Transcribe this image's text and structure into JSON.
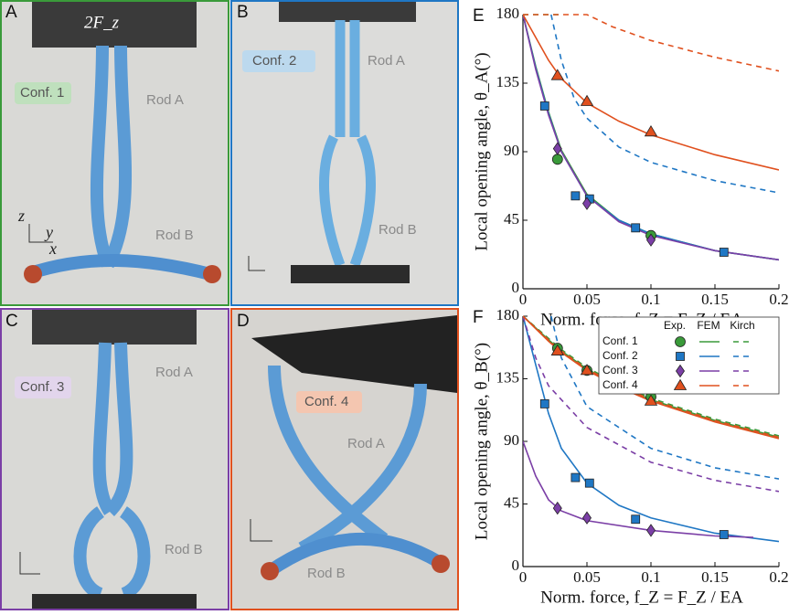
{
  "photos": [
    {
      "letter": "A",
      "force": "2F_z",
      "conf": "Conf. 1",
      "rod_a": "Rod A",
      "rod_b": "Rod B",
      "axes": [
        "z",
        "y",
        "x"
      ]
    },
    {
      "letter": "B",
      "conf": "Conf. 2",
      "rod_a": "Rod A",
      "rod_b": "Rod B"
    },
    {
      "letter": "C",
      "conf": "Conf. 3",
      "rod_a": "Rod A",
      "rod_b": "Rod B"
    },
    {
      "letter": "D",
      "conf": "Conf. 4",
      "rod_a": "Rod A",
      "rod_b": "Rod B"
    }
  ],
  "chart_data": [
    {
      "type": "line",
      "letter": "E",
      "xlabel": "Norm. force, f_Z = F_Z / EA",
      "ylabel": "Local opening angle, θ_A(°)",
      "xlim": [
        0,
        0.2
      ],
      "ylim": [
        0,
        180
      ],
      "xticks": [
        0,
        0.05,
        0.1,
        0.15,
        0.2
      ],
      "yticks": [
        0,
        45,
        90,
        135,
        180
      ],
      "series": [
        {
          "name": "Conf. 1",
          "color": "#3a9a3a",
          "marker": "circle",
          "exp": {
            "x": [
              0.027,
              0.1
            ],
            "values": [
              85,
              35
            ]
          },
          "fem": {
            "x": [
              0,
              0.01,
              0.02,
              0.03,
              0.05,
              0.075,
              0.1,
              0.15,
              0.2
            ],
            "values": [
              180,
              146,
              116,
              91,
              62,
              45,
              36,
              25,
              19
            ]
          },
          "kirch": {
            "x": [
              0,
              0.03
            ],
            "values": [
              180,
              180
            ]
          }
        },
        {
          "name": "Conf. 2",
          "color": "#1f77c4",
          "marker": "square",
          "exp": {
            "x": [
              0.017,
              0.041,
              0.052,
              0.088,
              0.157
            ],
            "values": [
              120,
              61,
              59,
              40,
              24
            ]
          },
          "fem": {
            "x": [
              0,
              0.01,
              0.02,
              0.03,
              0.05,
              0.075,
              0.1,
              0.15,
              0.2
            ],
            "values": [
              180,
              145,
              115,
              90,
              61,
              45,
              36,
              25,
              19
            ]
          },
          "kirch": {
            "x": [
              0.022,
              0.03,
              0.04,
              0.05,
              0.075,
              0.1,
              0.15,
              0.2
            ],
            "values": [
              180,
              150,
              125,
              112,
              93,
              83,
              71,
              63
            ]
          }
        },
        {
          "name": "Conf. 3",
          "color": "#7b3fa6",
          "marker": "diamond",
          "exp": {
            "x": [
              0.027,
              0.05,
              0.1
            ],
            "values": [
              92,
              56,
              32
            ]
          },
          "fem": {
            "x": [
              0,
              0.01,
              0.02,
              0.03,
              0.05,
              0.075,
              0.1,
              0.15,
              0.2
            ],
            "values": [
              180,
              144,
              114,
              90,
              61,
              44,
              35,
              25,
              19
            ]
          }
        },
        {
          "name": "Conf. 4",
          "color": "#e0501e",
          "marker": "triangle",
          "exp": {
            "x": [
              0.027,
              0.05,
              0.1
            ],
            "values": [
              140,
              123,
              103
            ]
          },
          "fem": {
            "x": [
              0,
              0.01,
              0.02,
              0.03,
              0.05,
              0.075,
              0.1,
              0.15,
              0.2
            ],
            "values": [
              180,
              165,
              150,
              138,
              122,
              110,
              101,
              88,
              78
            ]
          },
          "kirch": {
            "x": [
              0,
              0.05,
              0.07,
              0.1,
              0.15,
              0.2
            ],
            "values": [
              180,
              180,
              172,
              163,
              152,
              143
            ]
          }
        }
      ]
    },
    {
      "type": "line",
      "letter": "F",
      "xlabel": "Norm. force, f_Z = F_Z / EA",
      "ylabel": "Local opening angle, θ_B(°)",
      "xlim": [
        0,
        0.2
      ],
      "ylim": [
        0,
        180
      ],
      "xticks": [
        0,
        0.05,
        0.1,
        0.15,
        0.2
      ],
      "yticks": [
        0,
        45,
        90,
        135,
        180
      ],
      "legend": "upper right",
      "legend_columns": [
        "Exp.",
        "FEM",
        "Kirch"
      ],
      "series": [
        {
          "name": "Conf. 1",
          "color": "#3a9a3a",
          "marker": "circle",
          "exp": {
            "x": [
              0.027,
              0.05,
              0.1
            ],
            "values": [
              157,
              141,
              122
            ]
          },
          "fem": {
            "x": [
              0,
              0.02,
              0.03,
              0.05,
              0.075,
              0.1,
              0.15,
              0.2
            ],
            "values": [
              180,
              163,
              155,
              142,
              130,
              120,
              105,
              93
            ]
          },
          "kirch": {
            "x": [
              0,
              0.02,
              0.03,
              0.05,
              0.075,
              0.1,
              0.15,
              0.2
            ],
            "values": [
              180,
              164,
              156,
              143,
              131,
              121,
              106,
              94
            ]
          }
        },
        {
          "name": "Conf. 2",
          "color": "#1f77c4",
          "marker": "square",
          "exp": {
            "x": [
              0.017,
              0.041,
              0.052,
              0.088,
              0.157
            ],
            "values": [
              117,
              64,
              60,
              34,
              23
            ]
          },
          "fem": {
            "x": [
              0,
              0.01,
              0.02,
              0.03,
              0.05,
              0.075,
              0.1,
              0.15,
              0.2
            ],
            "values": [
              180,
              145,
              110,
              85,
              60,
              44,
              35,
              24,
              18
            ]
          },
          "kirch": {
            "x": [
              0.022,
              0.03,
              0.05,
              0.1,
              0.15,
              0.2
            ],
            "values": [
              180,
              150,
              115,
              85,
              71,
              63
            ]
          }
        },
        {
          "name": "Conf. 3",
          "color": "#7b3fa6",
          "marker": "diamond",
          "exp": {
            "x": [
              0.027,
              0.05,
              0.1
            ],
            "values": [
              42,
              35,
              26
            ]
          },
          "fem": {
            "x": [
              0,
              0.01,
              0.02,
              0.03,
              0.05,
              0.1,
              0.15,
              0.18
            ],
            "values": [
              90,
              65,
              48,
              40,
              33,
              26,
              22,
              21
            ]
          },
          "kirch": {
            "x": [
              0,
              0.01,
              0.02,
              0.05,
              0.1,
              0.15,
              0.2
            ],
            "values": [
              180,
              150,
              130,
              100,
              75,
              62,
              54
            ]
          }
        },
        {
          "name": "Conf. 4",
          "color": "#e0501e",
          "marker": "triangle",
          "exp": {
            "x": [
              0.027,
              0.05,
              0.1
            ],
            "values": [
              155,
              141,
              119
            ]
          },
          "fem": {
            "x": [
              0,
              0.02,
              0.03,
              0.05,
              0.075,
              0.1,
              0.15,
              0.2
            ],
            "values": [
              180,
              162,
              154,
              141,
              129,
              119,
              104,
              92
            ]
          },
          "kirch": {
            "x": [
              0,
              0.02,
              0.03,
              0.05,
              0.075,
              0.1,
              0.15,
              0.2
            ],
            "values": [
              180,
              163,
              155,
              142,
              130,
              120,
              105,
              93
            ]
          }
        }
      ]
    }
  ]
}
